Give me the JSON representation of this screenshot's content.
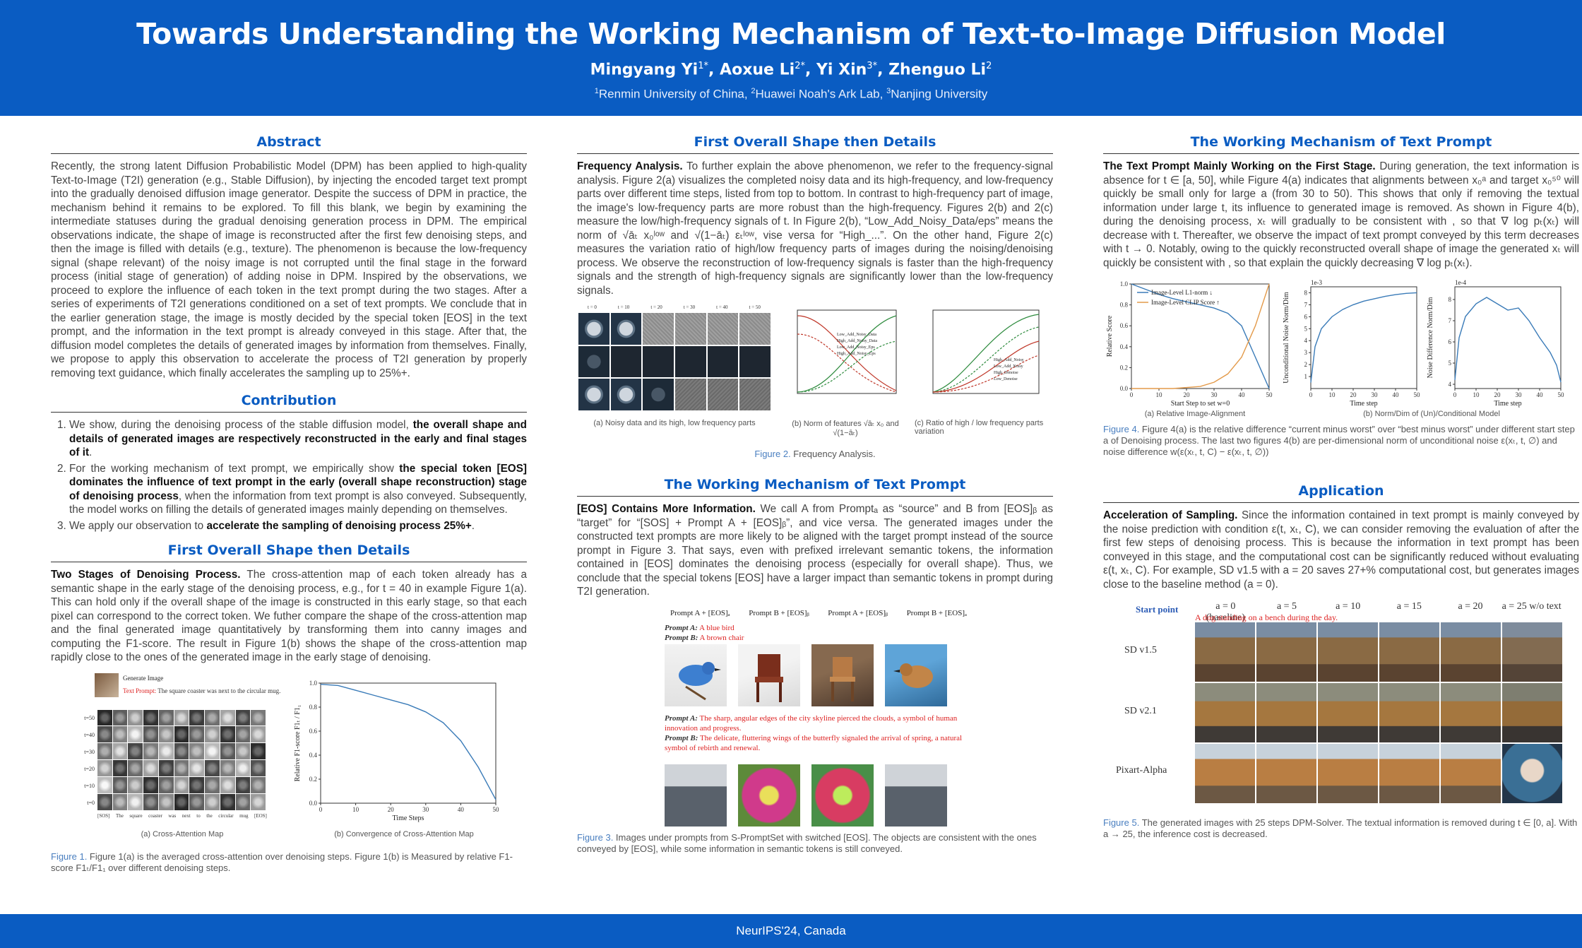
{
  "header": {
    "title": "Towards Understanding the Working Mechanism of Text-to-Image Diffusion Model",
    "authors": [
      {
        "name": "Mingyang Yi",
        "sup": "1*"
      },
      {
        "name": "Aoxue Li",
        "sup": "2*"
      },
      {
        "name": "Yi Xin",
        "sup": "3*"
      },
      {
        "name": "Zhenguo Li",
        "sup": "2"
      }
    ],
    "affiliations": [
      {
        "sup": "1",
        "name": "Renmin University of China"
      },
      {
        "sup": "2",
        "name": "Huawei Noah's Ark Lab"
      },
      {
        "sup": "3",
        "name": "Nanjing University"
      }
    ]
  },
  "footer": {
    "venue": "NeurIPS'24, Canada"
  },
  "abstract": {
    "title": "Abstract",
    "text": "Recently, the strong latent Diffusion Probabilistic Model (DPM) has been applied to high-quality Text-to-Image (T2I) generation (e.g., Stable Diffusion), by injecting the encoded target text prompt into the gradually denoised diffusion image generator. Despite the success of DPM in practice, the mechanism behind it remains to be explored. To fill this blank, we begin by examining the intermediate statuses during the gradual denoising generation process in DPM. The empirical observations indicate, the shape of image is reconstructed after the first few denoising steps, and then the image is filled with details (e.g., texture). The phenomenon is because the low-frequency signal (shape relevant) of the noisy image is not corrupted until the final stage in the forward process (initial stage of generation) of adding noise in DPM. Inspired by the observations, we proceed to explore the influence of each token in the text prompt during the two stages. After a series of experiments of T2I generations conditioned on a set of text prompts. We conclude that in the earlier generation stage, the image is mostly decided by the special token [EOS] in the text prompt, and the information in the text prompt is already conveyed in this stage. After that, the diffusion model completes the details of generated images by information from themselves. Finally, we propose to apply this observation to accelerate the process of T2I generation by properly removing text guidance, which finally accelerates the sampling up to 25%+."
  },
  "contribution": {
    "title": "Contribution",
    "items": [
      {
        "pre": "We show, during the denoising process of the stable diffusion model, ",
        "bold": "the overall shape and details of generated images are respectively reconstructed in the early and final stages of it",
        "post": "."
      },
      {
        "pre": "For the working mechanism of text prompt, we empirically show ",
        "bold": "the special token [EOS] dominates the influence of text prompt in the early (overall shape reconstruction) stage of denoising process",
        "post": ", when the information from text prompt is also conveyed. Subsequently, the model works on filling the details of generated images mainly depending on themselves."
      },
      {
        "pre": "We apply our observation to ",
        "bold": "accelerate the sampling of denoising process 25%+",
        "post": "."
      }
    ]
  },
  "shape_left": {
    "title": "First Overall Shape then Details",
    "lead": "Two Stages of Denoising Process.",
    "text": " The cross-attention map of each token already has a semantic shape in the early stage of the denoising process, e.g., for t = 40 in example Figure 1(a). This can hold only if the overall shape of the image is constructed in this early stage, so that each pixel can correspond to the correct token. We futher compare the shape of the cross-attention map and the final generated image quantitatively by transforming them into canny images and computing the F1-score. The result in Figure 1(b) shows the shape of the cross-attention map rapidly close to the ones of the generated image in the early stage of denoising.",
    "fig1": {
      "generate_label": "Generate Image",
      "prompt_label": "Text Prompt:",
      "prompt_text": "The square coaster was next to the circular mug.",
      "row_labels": [
        "t=50",
        "t=40",
        "t=30",
        "t=20",
        "t=10",
        "t=0"
      ],
      "token_labels": [
        "[SOS]",
        "The",
        "square",
        "coaster",
        "was",
        "next",
        "to",
        "the",
        "circular",
        "mug",
        "[EOS]"
      ],
      "sub_a": "(a) Cross-Attention Map",
      "sub_b": "(b) Convergence of Cross-Attention Map",
      "caption_label": "Figure 1.",
      "caption": " Figure 1(a) is the averaged cross-attention over denoising steps. Figure 1(b) is Measured by relative F1-score F1ₜ/F1₁ over different denoising steps."
    }
  },
  "shape_mid": {
    "title": "First Overall Shape then Details",
    "lead": "Frequency Analysis.",
    "text": " To further explain the above phenomenon, we refer to the frequency-signal analysis. Figure 2(a) visualizes the completed noisy data and its high-frequency, and low-frequency parts over different time steps, listed from top to bottom. In contrast to high-frequency part of image, the image's low-frequency parts are more robust than the high-frequency. Figures 2(b) and 2(c) measure the low/high-frequency signals of t. In Figure 2(b), “Low_Add_Noisy_Data/eps” means the norm of √āₜ x₀ˡᵒʷ and √(1−āₜ) εₜˡᵒʷ, vise versa for “High_...”. On the other hand, Figure 2(c) measures the variation ratio of high/low frequency parts of images during the noising/denoising process. We observe the reconstruction of low-frequency signals is faster than the high-frequency signals and the strength of high-frequency signals are significantly lower than the low-frequency signals.",
    "fig2": {
      "time_labels": [
        "t = 0",
        "t = 10",
        "t = 20",
        "t = 30",
        "t = 40",
        "t = 50"
      ],
      "sub_a": "(a) Noisy data and its high, low frequency parts",
      "sub_b": "(b) Norm of features √āₜ x₀ and √(1−āₜ)",
      "sub_c": "(c) Ratio of high / low frequency parts variation",
      "legend_b": [
        "Low_Add_Noisy_Data",
        "High_Add_Noisy_Data",
        "Low_Add_Noisy_Eps",
        "High_Add_Noisy_Eps"
      ],
      "legend_c": [
        "High_Add_Noisy",
        "Low_Add_Noisy",
        "High_Denoise",
        "Low_Denoise"
      ],
      "caption_label": "Figure 2.",
      "caption": " Frequency Analysis."
    }
  },
  "text_mid": {
    "title": "The Working Mechanism of Text Prompt",
    "lead": "[EOS] Contains More Information.",
    "text": " We call A from Promptₐ as “source” and B from [EOS]ᵦ as “target” for “[SOS] + Prompt A + [EOS]ᵦ”, and vice versa. The generated images under the constructed text prompts are more likely to be aligned with the target prompt instead of the source prompt in Figure 3. That says, even with prefixed irrelevant semantic tokens, the information contained in [EOS] dominates the denoising process (especially for overall shape). Thus, we conclude that the special tokens [EOS] have a larger impact than semantic tokens in prompt during T2I generation.",
    "fig3": {
      "col_labels": [
        "Prompt A + [EOS]ₐ",
        "Prompt B + [EOS]ᵦ",
        "Prompt A + [EOS]ᵦ",
        "Prompt B + [EOS]ₐ"
      ],
      "p1a_label": "Prompt A:",
      "p1a": "A blue bird",
      "p1b_label": "Prompt B:",
      "p1b": "A brown chair",
      "p2a_label": "Prompt A:",
      "p2a": "The sharp, angular edges of the city skyline pierced the clouds, a symbol of human innovation and progress.",
      "p2b_label": "Prompt B:",
      "p2b": "The delicate, fluttering wings of the butterfly signaled the arrival of spring, a natural symbol of rebirth and renewal.",
      "caption_label": "Figure 3.",
      "caption": " Images under prompts from S-PromptSet with switched [EOS]. The objects are consistent with the ones conveyed by [EOS], while some information in semantic tokens is still conveyed."
    }
  },
  "text_right": {
    "title": "The Working Mechanism of Text Prompt",
    "lead": "The Text Prompt Mainly Working on the First Stage.",
    "text": " During generation, the text information is absence for t ∈ [a, 50], while Figure 4(a) indicates that alignments between x₀ᵃ and target x₀⁵⁰ will quickly be small only for large a (from 30 to 50). This shows that only if removing the textual information under large t, its influence to generated image is removed. As shown in Figure 4(b), during the denoising process, xₜ will gradually to be consistent with , so that ∇ log pₜ(xₜ) will decrease with t. Thereafter, we observe the impact of text prompt conveyed by this term decreases with t → 0. Notably, owing to the quickly reconstructed overall shape of image the generated xₜ will quickly be consistent with , so that explain the quickly decreasing ∇ log pₜ(xₜ).",
    "fig4": {
      "legend": [
        "Image-Level L1-norm ↓",
        "Image-Level CLIP Score ↑"
      ],
      "ylabel_a": "Relative Score",
      "xlabel_a": "Start Step to set w=0",
      "ylabel_b": "Unconditional Noise Norm/Dim",
      "ylabel_c": "Noise Difference Norm/Dim",
      "xlabel_bc": "Time step",
      "scale_b": "1e-3",
      "scale_c": "1e-4",
      "sub_a": "(a) Relative Image-Alignment",
      "sub_b": "(b) Norm/Dim of (Un)/Conditional Model",
      "caption_label": "Figure 4.",
      "caption": " Figure 4(a) is the relative difference “current minus worst” over “best minus worst” under different start step a of Denoising process. The last two figures 4(b) are per-dimensional norm of unconditional noise ε(xₜ, t, ∅) and noise difference w(ε(xₜ, t, C) − ε(xₜ, t, ∅))"
    }
  },
  "application": {
    "title": "Application",
    "lead": "Acceleration of Sampling.",
    "text": " Since the information contained in text prompt is mainly conveyed by the noise prediction with condition ε(t, xₜ, C), we can consider removing the evaluation of after the first few steps of denoising process. This is because the information in text prompt has been conveyed in this stage, and the computational cost can be significantly reduced without evaluating ε(t, xₜ, C). For example, SD v1.5 with a = 20 saves 27+% computational cost, but generates images close to the baseline method (a = 0).",
    "fig5": {
      "start_label": "Start point",
      "col_labels": [
        "a = 0  (baseline)",
        "a = 5",
        "a = 10",
        "a = 15",
        "a = 20",
        "a = 25 w/o text"
      ],
      "prompt": "A dog standing on a bench during the day.",
      "row_labels": [
        "SD v1.5",
        "SD v2.1",
        "Pixart-Alpha"
      ],
      "caption_label": "Figure 5.",
      "caption": " The generated images with 25 steps DPM-Solver. The textual information is removed during t ∈ [0, a]. With a → 25, the inference cost is decreased."
    }
  },
  "chart_data": [
    {
      "type": "line",
      "title": "",
      "xlabel": "Time Steps",
      "ylabel": "Relative F1-score F1ₜ / F1₁",
      "x": [
        0,
        5,
        10,
        15,
        20,
        25,
        30,
        35,
        40,
        45,
        50
      ],
      "series": [
        {
          "values": [
            0.99,
            0.98,
            0.94,
            0.9,
            0.86,
            0.82,
            0.76,
            0.67,
            0.52,
            0.3,
            0.03
          ]
        }
      ],
      "xlim": [
        0,
        50
      ],
      "ylim": [
        0.0,
        1.0
      ],
      "xticks": [
        0,
        10,
        20,
        30,
        40,
        50
      ],
      "yticks": [
        0.0,
        0.2,
        0.4,
        0.6,
        0.8,
        1.0
      ]
    },
    {
      "type": "line",
      "title": "",
      "xlabel": "Start Step to set w=0",
      "ylabel": "Relative Score",
      "x": [
        0,
        5,
        10,
        15,
        20,
        25,
        30,
        35,
        40,
        45,
        50
      ],
      "series": [
        {
          "name": "Image-Level L1-norm ↓",
          "values": [
            1.0,
            0.95,
            0.9,
            0.86,
            0.83,
            0.8,
            0.77,
            0.72,
            0.6,
            0.3,
            0.0
          ]
        },
        {
          "name": "Image-Level CLIP Score ↑",
          "values": [
            0.0,
            0.0,
            0.0,
            0.0,
            0.01,
            0.02,
            0.06,
            0.14,
            0.3,
            0.6,
            1.0
          ]
        }
      ],
      "xlim": [
        0,
        50
      ],
      "ylim": [
        0.0,
        1.0
      ],
      "xticks": [
        0,
        10,
        20,
        30,
        40,
        50
      ],
      "yticks": [
        0.0,
        0.2,
        0.4,
        0.6,
        0.8,
        1.0
      ],
      "legend": "top-left"
    },
    {
      "type": "line",
      "title": "",
      "xlabel": "Time step",
      "ylabel": "Unconditional Noise Norm/Dim",
      "scale": "1e-3",
      "x": [
        0,
        2,
        5,
        10,
        15,
        20,
        25,
        30,
        35,
        40,
        45,
        50
      ],
      "series": [
        {
          "values": [
            0.5,
            3.5,
            5.0,
            6.0,
            6.6,
            7.0,
            7.3,
            7.5,
            7.7,
            7.85,
            7.95,
            8.0
          ]
        }
      ],
      "xlim": [
        0,
        50
      ],
      "ylim": [
        0,
        8.5
      ],
      "xticks": [
        0,
        10,
        20,
        30,
        40,
        50
      ],
      "yticks": [
        1,
        2,
        3,
        4,
        5,
        6,
        7,
        8
      ]
    },
    {
      "type": "line",
      "title": "",
      "xlabel": "Time step",
      "ylabel": "Noise Difference Norm/Dim",
      "scale": "1e-4",
      "x": [
        0,
        2,
        5,
        10,
        15,
        20,
        25,
        30,
        35,
        40,
        45,
        48,
        50
      ],
      "series": [
        {
          "values": [
            4.2,
            6.2,
            7.2,
            7.8,
            8.1,
            7.8,
            7.5,
            7.6,
            7.0,
            6.2,
            5.5,
            4.9,
            4.1
          ]
        }
      ],
      "xlim": [
        0,
        50
      ],
      "ylim": [
        3.8,
        8.6
      ],
      "xticks": [
        0,
        10,
        20,
        30,
        40,
        50
      ],
      "yticks": [
        4,
        5,
        6,
        7,
        8
      ]
    }
  ]
}
